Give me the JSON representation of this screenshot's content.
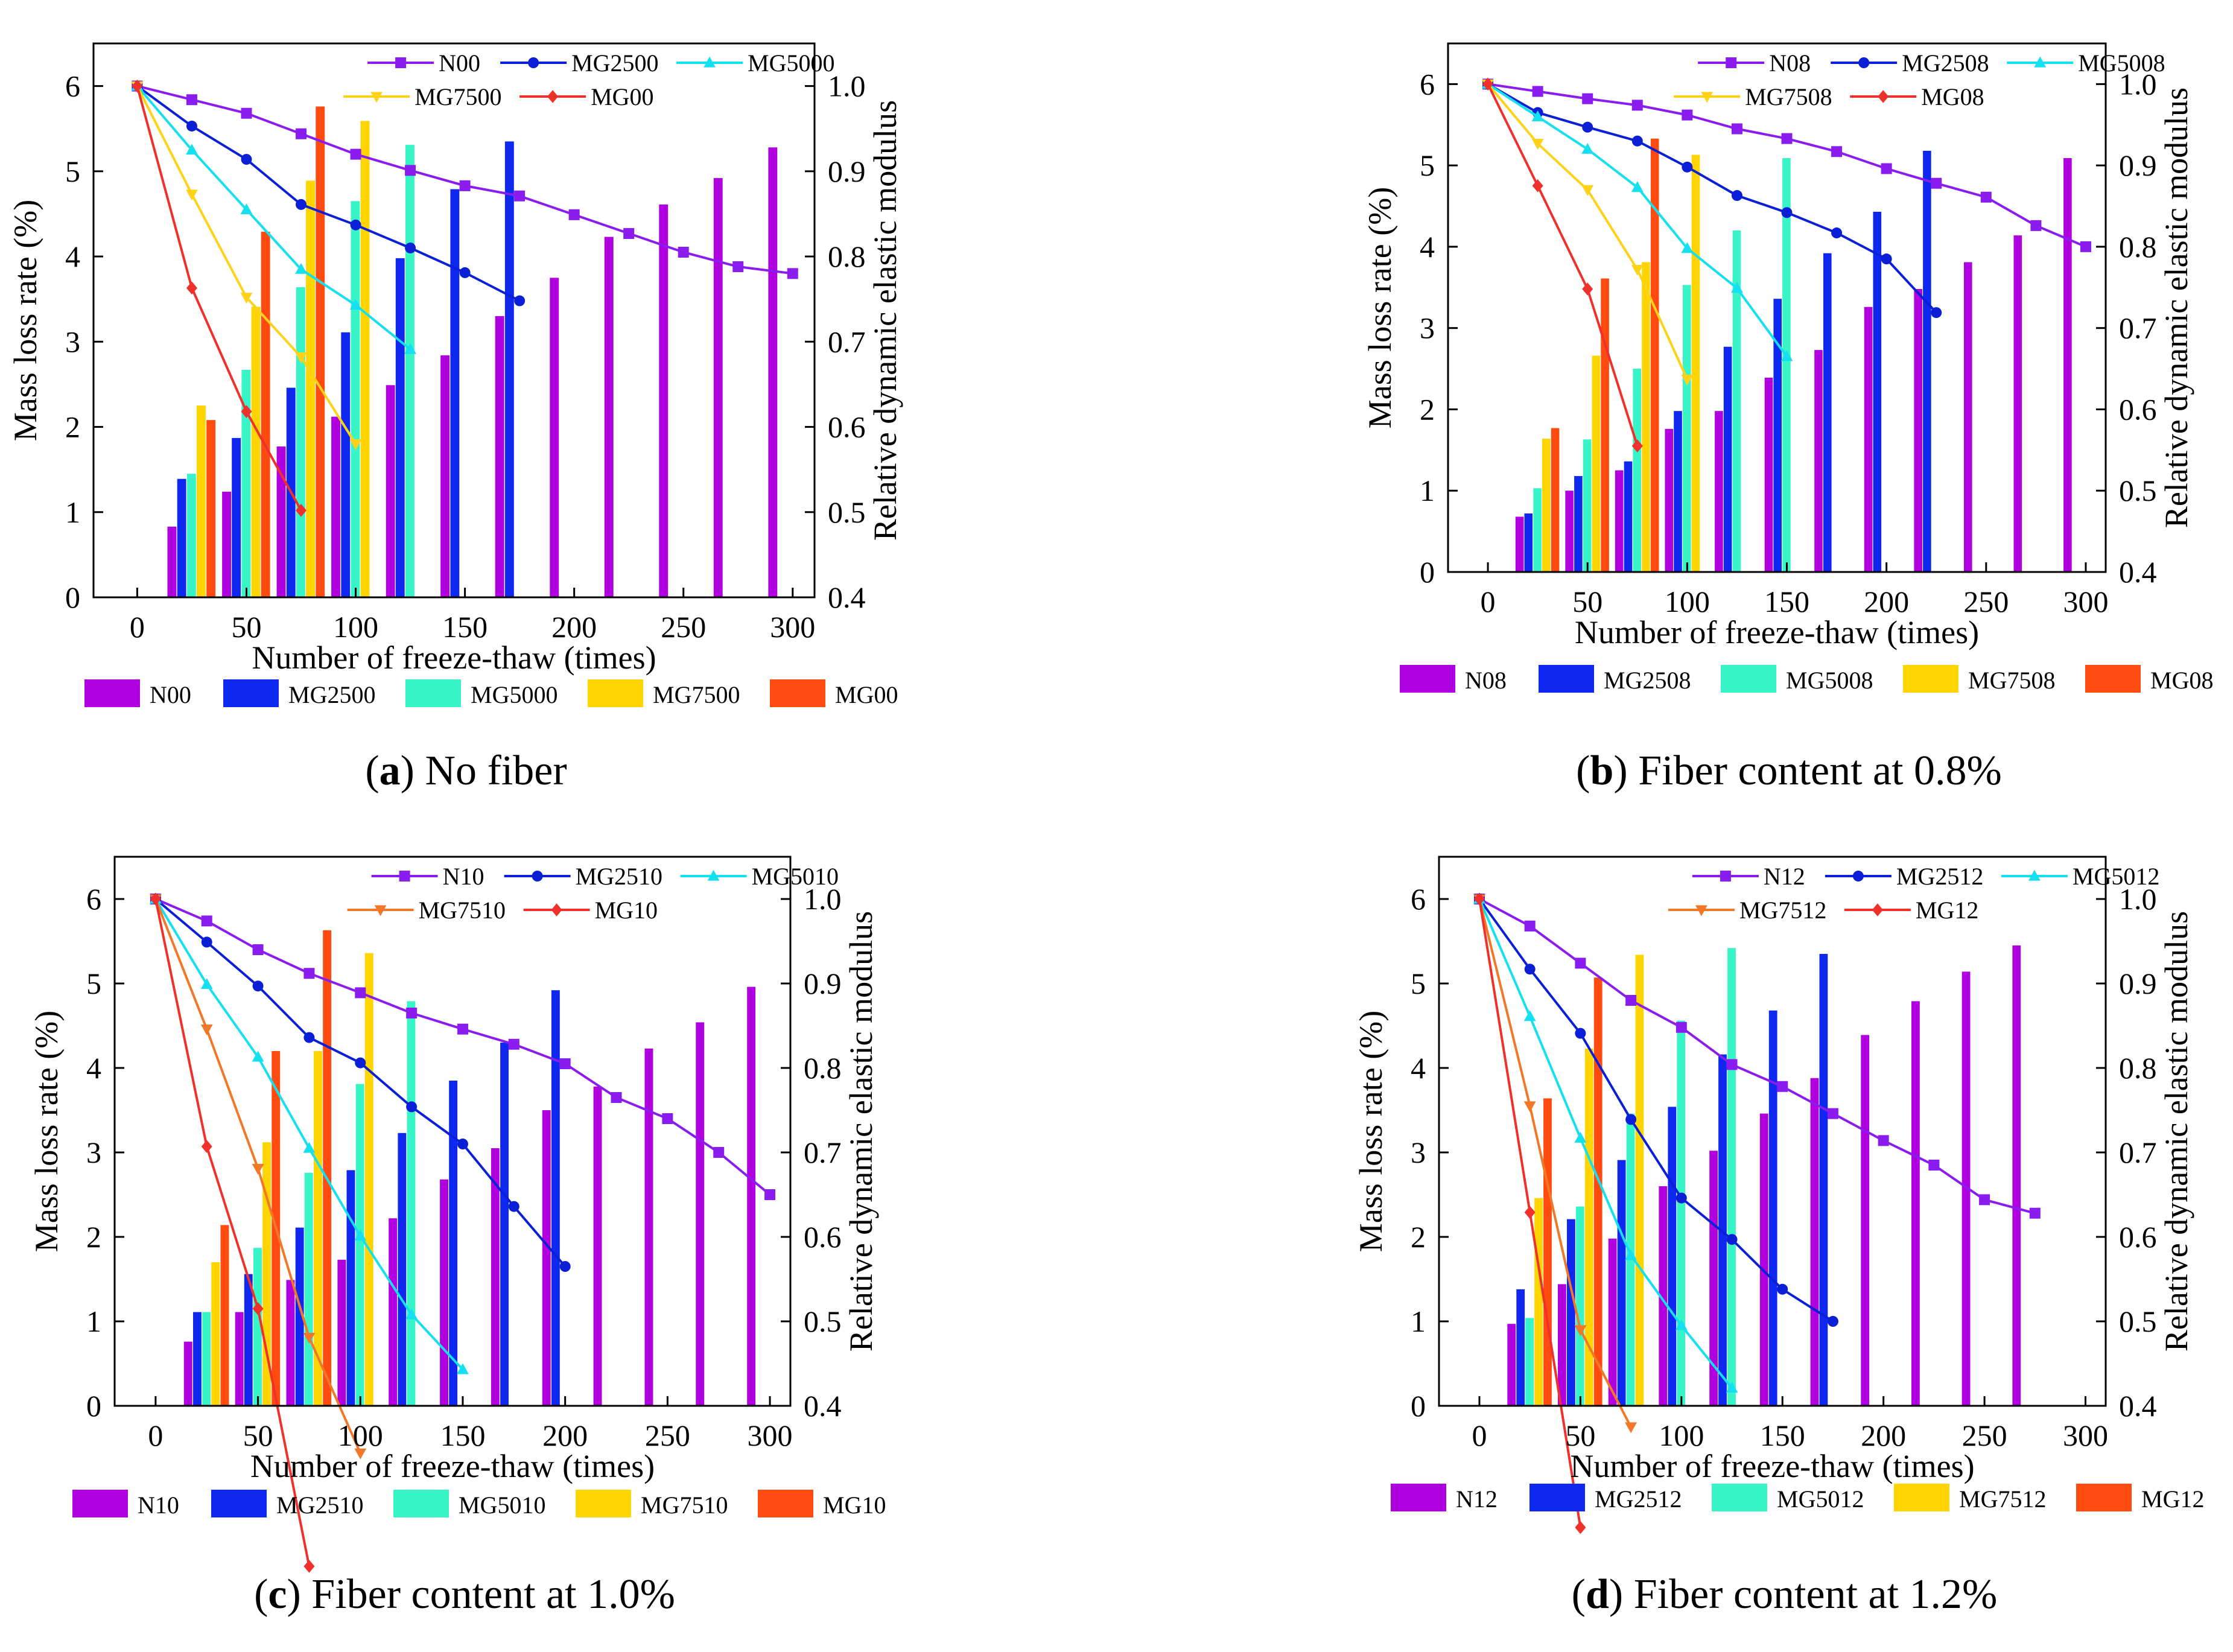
{
  "chart_data": [
    {
      "type": "bar+line",
      "panel_letter": "a",
      "caption": "No fiber",
      "xlabel": "Number of freeze-thaw (times)",
      "ylabel": "Mass loss rate (%)",
      "y2label": "Relative dynamic elastic modulus",
      "xlim": [
        -20,
        310
      ],
      "ylim": [
        0,
        6.5
      ],
      "y2lim": [
        0.4,
        1.05
      ],
      "xticks": [
        0,
        50,
        100,
        150,
        200,
        250,
        300
      ],
      "yticks": [
        0,
        1,
        2,
        3,
        4,
        5,
        6
      ],
      "y2ticks": [
        "0.4",
        "0.5",
        "0.6",
        "0.7",
        "0.8",
        "0.9",
        "1.0"
      ],
      "bar_series": [
        {
          "name": "N00",
          "x": [
            25,
            50,
            75,
            100,
            125,
            150,
            175,
            200,
            225,
            250,
            275,
            300
          ],
          "values": [
            0.83,
            1.24,
            1.77,
            2.12,
            2.49,
            2.84,
            3.3,
            3.75,
            4.23,
            4.61,
            4.92,
            5.28
          ]
        },
        {
          "name": "MG2500",
          "x": [
            25,
            50,
            75,
            100,
            125,
            150,
            175
          ],
          "values": [
            1.39,
            1.87,
            2.46,
            3.11,
            3.98,
            4.79,
            5.35
          ]
        },
        {
          "name": "MG5000",
          "x": [
            25,
            50,
            75,
            100,
            125
          ],
          "values": [
            1.45,
            2.67,
            3.64,
            4.65,
            5.31
          ]
        },
        {
          "name": "MG7500",
          "x": [
            25,
            50,
            75,
            100
          ],
          "values": [
            2.25,
            3.41,
            4.89,
            5.59
          ]
        },
        {
          "name": "MG00",
          "x": [
            25,
            50,
            75
          ],
          "values": [
            2.08,
            4.29,
            5.76
          ]
        }
      ],
      "line_series": [
        {
          "name": "N00",
          "x": [
            0,
            25,
            50,
            75,
            100,
            125,
            150,
            175,
            200,
            225,
            250,
            275,
            300
          ],
          "values": [
            1.0,
            0.984,
            0.968,
            0.944,
            0.92,
            0.901,
            0.883,
            0.871,
            0.849,
            0.827,
            0.805,
            0.788,
            0.78
          ]
        },
        {
          "name": "MG2500",
          "x": [
            0,
            25,
            50,
            75,
            100,
            125,
            150,
            175
          ],
          "values": [
            1.0,
            0.953,
            0.914,
            0.861,
            0.837,
            0.81,
            0.781,
            0.748
          ]
        },
        {
          "name": "MG5000",
          "x": [
            0,
            25,
            50,
            75,
            100,
            125
          ],
          "values": [
            1.0,
            0.925,
            0.855,
            0.785,
            0.743,
            0.691
          ]
        },
        {
          "name": "MG7500",
          "x": [
            0,
            25,
            50,
            75,
            100
          ],
          "values": [
            1.0,
            0.873,
            0.752,
            0.682,
            0.58
          ]
        },
        {
          "name": "MG00",
          "x": [
            0,
            25,
            50,
            75
          ],
          "values": [
            1.0,
            0.763,
            0.618,
            0.502
          ]
        }
      ]
    },
    {
      "type": "bar+line",
      "panel_letter": "b",
      "caption": "Fiber content at 0.8%",
      "xlabel": "Number of freeze-thaw (times)",
      "ylabel": "Mass loss rate (%)",
      "y2label": "Relative dynamic elastic modulus",
      "xlim": [
        -20,
        310
      ],
      "ylim": [
        0,
        6.5
      ],
      "y2lim": [
        0.4,
        1.05
      ],
      "xticks": [
        0,
        50,
        100,
        150,
        200,
        250,
        300
      ],
      "yticks": [
        0,
        1,
        2,
        3,
        4,
        5,
        6
      ],
      "y2ticks": [
        "0.4",
        "0.5",
        "0.6",
        "0.7",
        "0.8",
        "0.9",
        "1.0"
      ],
      "bar_series": [
        {
          "name": "N08",
          "x": [
            25,
            50,
            75,
            100,
            125,
            150,
            175,
            200,
            225,
            250,
            275,
            300
          ],
          "values": [
            0.68,
            1.0,
            1.25,
            1.76,
            1.98,
            2.39,
            2.73,
            3.26,
            3.48,
            3.81,
            4.14,
            5.09
          ]
        },
        {
          "name": "MG2508",
          "x": [
            25,
            50,
            75,
            100,
            125,
            150,
            175,
            200,
            225
          ],
          "values": [
            0.72,
            1.18,
            1.36,
            1.98,
            2.77,
            3.36,
            3.92,
            4.43,
            5.18
          ]
        },
        {
          "name": "MG5008",
          "x": [
            25,
            50,
            75,
            100,
            125,
            150
          ],
          "values": [
            1.03,
            1.63,
            2.5,
            3.53,
            4.2,
            5.09
          ]
        },
        {
          "name": "MG7508",
          "x": [
            25,
            50,
            75,
            100
          ],
          "values": [
            1.64,
            2.66,
            3.81,
            5.13
          ]
        },
        {
          "name": "MG08",
          "x": [
            25,
            50,
            75
          ],
          "values": [
            1.77,
            3.61,
            5.33
          ]
        }
      ],
      "line_series": [
        {
          "name": "N08",
          "x": [
            0,
            25,
            50,
            75,
            100,
            125,
            150,
            175,
            200,
            225,
            250,
            275,
            300
          ],
          "values": [
            1.0,
            0.991,
            0.982,
            0.974,
            0.962,
            0.945,
            0.933,
            0.917,
            0.896,
            0.878,
            0.861,
            0.826,
            0.8
          ]
        },
        {
          "name": "MG2508",
          "x": [
            0,
            25,
            50,
            75,
            100,
            125,
            150,
            175,
            200,
            225
          ],
          "values": [
            1.0,
            0.965,
            0.947,
            0.93,
            0.898,
            0.863,
            0.842,
            0.817,
            0.785,
            0.719
          ]
        },
        {
          "name": "MG5008",
          "x": [
            0,
            25,
            50,
            75,
            100,
            125,
            150
          ],
          "values": [
            1.0,
            0.96,
            0.92,
            0.873,
            0.798,
            0.749,
            0.665
          ]
        },
        {
          "name": "MG7508",
          "x": [
            0,
            25,
            50,
            75,
            100
          ],
          "values": [
            1.0,
            0.927,
            0.87,
            0.772,
            0.637
          ]
        },
        {
          "name": "MG08",
          "x": [
            0,
            25,
            50,
            75
          ],
          "values": [
            1.0,
            0.875,
            0.748,
            0.555
          ]
        }
      ]
    },
    {
      "type": "bar+line",
      "panel_letter": "c",
      "caption": "Fiber content at 1.0%",
      "xlabel": "Number of freeze-thaw (times)",
      "ylabel": "Mass loss rate (%)",
      "y2label": "Relative dynamic elastic modulus",
      "xlim": [
        -20,
        310
      ],
      "ylim": [
        0,
        6.5
      ],
      "y2lim": [
        0.4,
        1.05
      ],
      "xticks": [
        0,
        50,
        100,
        150,
        200,
        250,
        300
      ],
      "yticks": [
        0,
        1,
        2,
        3,
        4,
        5,
        6
      ],
      "y2ticks": [
        "0.4",
        "0.5",
        "0.6",
        "0.7",
        "0.8",
        "0.9",
        "1.0"
      ],
      "bar_series": [
        {
          "name": "N10",
          "x": [
            25,
            50,
            75,
            100,
            125,
            150,
            175,
            200,
            225,
            250,
            275,
            300
          ],
          "values": [
            0.76,
            1.11,
            1.49,
            1.73,
            2.22,
            2.68,
            3.05,
            3.5,
            3.78,
            4.23,
            4.54,
            4.96
          ]
        },
        {
          "name": "MG2510",
          "x": [
            25,
            50,
            75,
            100,
            125,
            150,
            175,
            200
          ],
          "values": [
            1.11,
            1.56,
            2.11,
            2.79,
            3.23,
            3.85,
            4.3,
            4.92
          ]
        },
        {
          "name": "MG5010",
          "x": [
            25,
            50,
            75,
            100,
            125
          ],
          "values": [
            1.11,
            1.87,
            2.76,
            3.81,
            4.79
          ]
        },
        {
          "name": "MG7510",
          "x": [
            25,
            50,
            75,
            100
          ],
          "values": [
            1.7,
            3.12,
            4.2,
            5.36
          ]
        },
        {
          "name": "MG10",
          "x": [
            25,
            50,
            75
          ],
          "values": [
            2.14,
            4.2,
            5.63
          ]
        }
      ],
      "line_series": [
        {
          "name": "N10",
          "x": [
            0,
            25,
            50,
            75,
            100,
            125,
            150,
            175,
            200,
            225,
            250,
            275,
            300
          ],
          "values": [
            1.0,
            0.974,
            0.94,
            0.912,
            0.889,
            0.865,
            0.846,
            0.828,
            0.805,
            0.765,
            0.74,
            0.7,
            0.65
          ]
        },
        {
          "name": "MG2510",
          "x": [
            0,
            25,
            50,
            75,
            100,
            125,
            150,
            175,
            200
          ],
          "values": [
            1.0,
            0.949,
            0.897,
            0.836,
            0.806,
            0.754,
            0.71,
            0.636,
            0.565
          ]
        },
        {
          "name": "MG5010",
          "x": [
            0,
            25,
            50,
            75,
            100,
            125,
            150
          ],
          "values": [
            1.0,
            0.899,
            0.813,
            0.705,
            0.601,
            0.508,
            0.443
          ]
        },
        {
          "name": "MG7510",
          "x": [
            0,
            25,
            50,
            75,
            100
          ],
          "values": [
            1.0,
            0.846,
            0.681,
            0.481,
            0.344
          ]
        },
        {
          "name": "MG10",
          "x": [
            0,
            25,
            50,
            75
          ],
          "values": [
            1.0,
            0.707,
            0.515,
            0.21
          ]
        }
      ]
    },
    {
      "type": "bar+line",
      "panel_letter": "d",
      "caption": "Fiber content at 1.2%",
      "xlabel": "Number of freeze-thaw (times)",
      "ylabel": "Mass loss rate (%)",
      "y2label": "Relative dynamic elastic modulus",
      "xlim": [
        -20,
        310
      ],
      "ylim": [
        0,
        6.5
      ],
      "y2lim": [
        0.4,
        1.05
      ],
      "xticks": [
        0,
        50,
        100,
        150,
        200,
        250,
        300
      ],
      "yticks": [
        0,
        1,
        2,
        3,
        4,
        5,
        6
      ],
      "y2ticks": [
        "0.4",
        "0.5",
        "0.6",
        "0.7",
        "0.8",
        "0.9",
        "1.0"
      ],
      "bar_series": [
        {
          "name": "N12",
          "x": [
            25,
            50,
            75,
            100,
            125,
            150,
            175,
            200,
            225,
            250,
            275
          ],
          "values": [
            0.97,
            1.44,
            1.98,
            2.6,
            3.02,
            3.46,
            3.88,
            4.39,
            4.79,
            5.14,
            5.45
          ]
        },
        {
          "name": "MG2512",
          "x": [
            25,
            50,
            75,
            100,
            125,
            150,
            175
          ],
          "values": [
            1.38,
            2.21,
            2.91,
            3.54,
            4.16,
            4.68,
            5.35
          ]
        },
        {
          "name": "MG5012",
          "x": [
            25,
            50,
            75,
            100,
            125
          ],
          "values": [
            1.04,
            2.36,
            3.46,
            4.56,
            5.42
          ]
        },
        {
          "name": "MG7512",
          "x": [
            25,
            50,
            75
          ],
          "values": [
            2.46,
            4.23,
            5.34
          ]
        },
        {
          "name": "MG12",
          "x": [
            25,
            50
          ],
          "values": [
            3.64,
            5.07
          ]
        }
      ],
      "line_series": [
        {
          "name": "N12",
          "x": [
            0,
            25,
            50,
            75,
            100,
            125,
            150,
            175,
            200,
            225,
            250,
            275
          ],
          "values": [
            1.0,
            0.968,
            0.924,
            0.88,
            0.848,
            0.804,
            0.778,
            0.746,
            0.714,
            0.685,
            0.644,
            0.628
          ]
        },
        {
          "name": "MG2512",
          "x": [
            0,
            25,
            50,
            75,
            100,
            125,
            150,
            175
          ],
          "values": [
            1.0,
            0.917,
            0.841,
            0.739,
            0.646,
            0.597,
            0.538,
            0.5
          ]
        },
        {
          "name": "MG5012",
          "x": [
            0,
            25,
            50,
            75,
            100,
            125
          ],
          "values": [
            1.0,
            0.861,
            0.717,
            0.578,
            0.495,
            0.421
          ]
        },
        {
          "name": "MG7512",
          "x": [
            0,
            25,
            50,
            75
          ],
          "values": [
            1.0,
            0.755,
            0.49,
            0.375
          ]
        },
        {
          "name": "MG12",
          "x": [
            0,
            25,
            50
          ],
          "values": [
            1.0,
            0.629,
            0.256
          ]
        }
      ]
    }
  ]
}
